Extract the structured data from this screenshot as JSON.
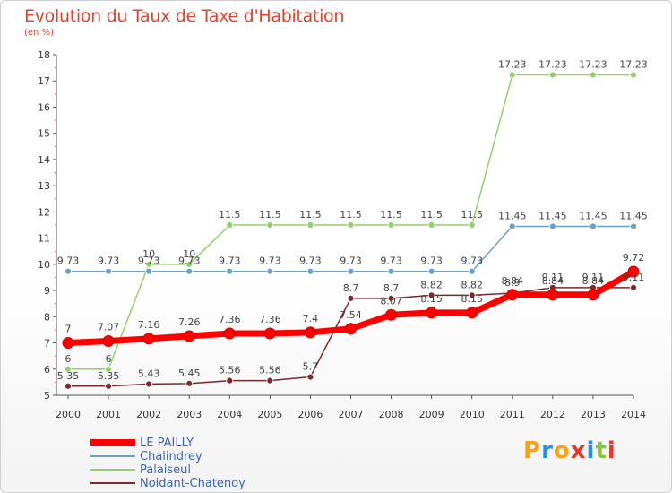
{
  "header": {
    "title": "Evolution du Taux de Taxe d'Habitation",
    "unit": "(en %)"
  },
  "logo": {
    "letters": [
      "P",
      "r",
      "o",
      "x",
      "i",
      "t",
      "i"
    ],
    "colors": [
      "#f7a21b",
      "#2a8fd6",
      "#f7a21b",
      "#e03a2f",
      "#2a8fd6",
      "#8bc53f",
      "#e03a2f"
    ]
  },
  "chart_data": {
    "type": "line",
    "title": "Evolution du Taux de Taxe d'Habitation",
    "ylabel": "(en %)",
    "x": [
      "2000",
      "2001",
      "2002",
      "2003",
      "2004",
      "2005",
      "2006",
      "2007",
      "2008",
      "2009",
      "2010",
      "2011",
      "2012",
      "2013",
      "2014"
    ],
    "y_ticks": [
      "5",
      "6",
      "7",
      "8",
      "9",
      "10",
      "11",
      "12",
      "13",
      "14",
      "15",
      "16",
      "17",
      "18"
    ],
    "ylim": [
      5,
      18
    ],
    "grid": false,
    "legend_position": "bottom-left",
    "series": [
      {
        "name": "LE PAILLY",
        "color": "#ff0000",
        "width": 7,
        "marker": 6,
        "values": [
          7,
          7.07,
          7.16,
          7.26,
          7.36,
          7.36,
          7.4,
          7.54,
          8.07,
          8.15,
          8.15,
          8.84,
          8.84,
          8.84,
          9.72
        ],
        "labels": [
          "7",
          "7.07",
          "7.16",
          "7.26",
          "7.36",
          "7.36",
          "7.4",
          "7.54",
          "8.07",
          "8.15",
          "8.15",
          "8.84",
          "8.84",
          "8.84",
          "9.72"
        ]
      },
      {
        "name": "Chalindrey",
        "color": "#6a9fc8",
        "width": 1.5,
        "marker": 3.5,
        "values": [
          9.73,
          9.73,
          9.73,
          9.73,
          9.73,
          9.73,
          9.73,
          9.73,
          9.73,
          9.73,
          9.73,
          11.45,
          11.45,
          11.45,
          11.45
        ],
        "labels": [
          "9.73",
          "9.73",
          "9.73",
          "9.73",
          "9.73",
          "9.73",
          "9.73",
          "9.73",
          "9.73",
          "9.73",
          "9.73",
          "11.45",
          "11.45",
          "11.45",
          "11.45"
        ]
      },
      {
        "name": "Palaiseul",
        "color": "#8fd16a",
        "width": 1.5,
        "marker": 3.5,
        "values": [
          6,
          6,
          10,
          10,
          11.5,
          11.5,
          11.5,
          11.5,
          11.5,
          11.5,
          11.5,
          17.23,
          17.23,
          17.23,
          17.23
        ],
        "labels": [
          "6",
          "6",
          "10",
          "10",
          "11.5",
          "11.5",
          "11.5",
          "11.5",
          "11.5",
          "11.5",
          "11.5",
          "17.23",
          "17.23",
          "17.23",
          "17.23"
        ]
      },
      {
        "name": "Noidant-Chatenoy",
        "color": "#7a2a2a",
        "width": 1.5,
        "marker": 3.5,
        "values": [
          5.35,
          5.35,
          5.43,
          5.45,
          5.56,
          5.56,
          5.7,
          8.7,
          8.7,
          8.82,
          8.82,
          8.9,
          9.11,
          9.11,
          9.11
        ],
        "labels": [
          "5.35",
          "5.35",
          "5.43",
          "5.45",
          "5.56",
          "5.56",
          "5.7",
          "8.7",
          "8.7",
          "8.82",
          "8.82",
          "8.9",
          "9.11",
          "9.11",
          "9.11"
        ]
      }
    ]
  }
}
